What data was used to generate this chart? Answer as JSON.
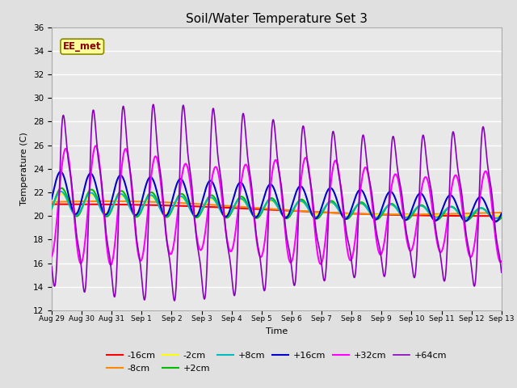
{
  "title": "Soil/Water Temperature Set 3",
  "xlabel": "Time",
  "ylabel": "Temperature (C)",
  "ylim": [
    12,
    36
  ],
  "yticks": [
    12,
    14,
    16,
    18,
    20,
    22,
    24,
    26,
    28,
    30,
    32,
    34,
    36
  ],
  "num_points": 1440,
  "series": {
    "-16cm": {
      "color": "#ff0000",
      "linewidth": 1.5,
      "zorder": 3
    },
    "-8cm": {
      "color": "#ff8800",
      "linewidth": 1.5,
      "zorder": 3
    },
    "-2cm": {
      "color": "#ffff00",
      "linewidth": 1.5,
      "zorder": 3
    },
    "+2cm": {
      "color": "#00bb00",
      "linewidth": 1.5,
      "zorder": 3
    },
    "+8cm": {
      "color": "#00bbbb",
      "linewidth": 1.5,
      "zorder": 3
    },
    "+16cm": {
      "color": "#0000cc",
      "linewidth": 1.5,
      "zorder": 4
    },
    "+32cm": {
      "color": "#ff00ff",
      "linewidth": 1.5,
      "zorder": 5
    },
    "+64cm": {
      "color": "#8800bb",
      "linewidth": 1.2,
      "zorder": 6
    }
  },
  "watermark": "EE_met",
  "watermark_bg": "#ffff99",
  "watermark_border": "#888800",
  "bg_color": "#e0e0e0",
  "plot_bg_color": "#e8e8e8",
  "xtick_labels": [
    "Aug 29",
    "Aug 30",
    "Aug 31",
    "Sep 1",
    "Sep 2",
    "Sep 3",
    "Sep 4",
    "Sep 5",
    "Sep 6",
    "Sep 7",
    "Sep 8",
    "Sep 9",
    "Sep 10",
    "Sep 11",
    "Sep 12",
    "Sep 13"
  ],
  "legend_fontsize": 8,
  "title_fontsize": 11,
  "figwidth": 6.4,
  "figheight": 4.8,
  "dpi": 100
}
